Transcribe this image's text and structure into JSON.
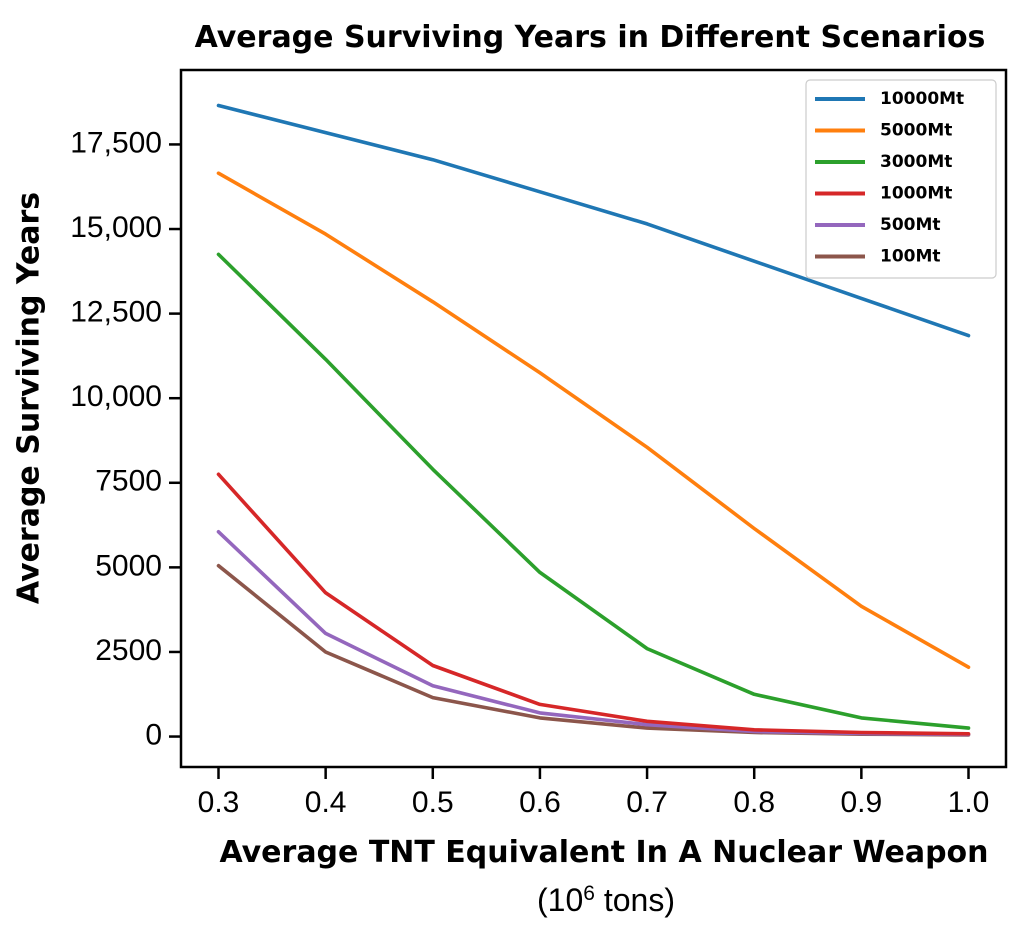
{
  "chart_data": {
    "type": "line",
    "title": "Average Surviving Years in Different Scenarios",
    "xlabel": "Average TNT Equivalent In A Nuclear Weapon",
    "xlabel_unit": {
      "prefix": "(10",
      "superscript": "6",
      "suffix": " tons)"
    },
    "ylabel": "Average Surviving Years",
    "x": [
      0.3,
      0.4,
      0.5,
      0.6,
      0.7,
      0.8,
      0.9,
      1.0
    ],
    "x_tick_labels": [
      "0.3",
      "0.4",
      "0.5",
      "0.6",
      "0.7",
      "0.8",
      "0.9",
      "1.0"
    ],
    "y_ticks": [
      0,
      2500,
      5000,
      7500,
      10000,
      12500,
      15000,
      17500
    ],
    "y_tick_labels": [
      "0",
      "2500",
      "5000",
      "7500",
      "10,000",
      "12,500",
      "15,000",
      "17,500"
    ],
    "xlim": [
      0.265,
      1.035
    ],
    "ylim": [
      -900,
      19700
    ],
    "grid": false,
    "legend_position": "top-right",
    "series": [
      {
        "name": "10000Mt",
        "color": "#1f77b4",
        "values": [
          18650,
          17850,
          17050,
          16100,
          15150,
          14050,
          12950,
          11850
        ]
      },
      {
        "name": "5000Mt",
        "color": "#ff7f0e",
        "values": [
          16650,
          14850,
          12850,
          10750,
          8550,
          6150,
          3850,
          2050
        ]
      },
      {
        "name": "3000Mt",
        "color": "#2ca02c",
        "values": [
          14250,
          11150,
          7900,
          4850,
          2600,
          1250,
          550,
          250
        ]
      },
      {
        "name": "1000Mt",
        "color": "#d62728",
        "values": [
          7750,
          4250,
          2100,
          950,
          450,
          200,
          120,
          80
        ]
      },
      {
        "name": "500Mt",
        "color": "#9467bd",
        "values": [
          6050,
          3050,
          1500,
          700,
          350,
          150,
          90,
          60
        ]
      },
      {
        "name": "100Mt",
        "color": "#8c564b",
        "values": [
          5050,
          2500,
          1150,
          550,
          250,
          120,
          70,
          50
        ]
      }
    ]
  }
}
